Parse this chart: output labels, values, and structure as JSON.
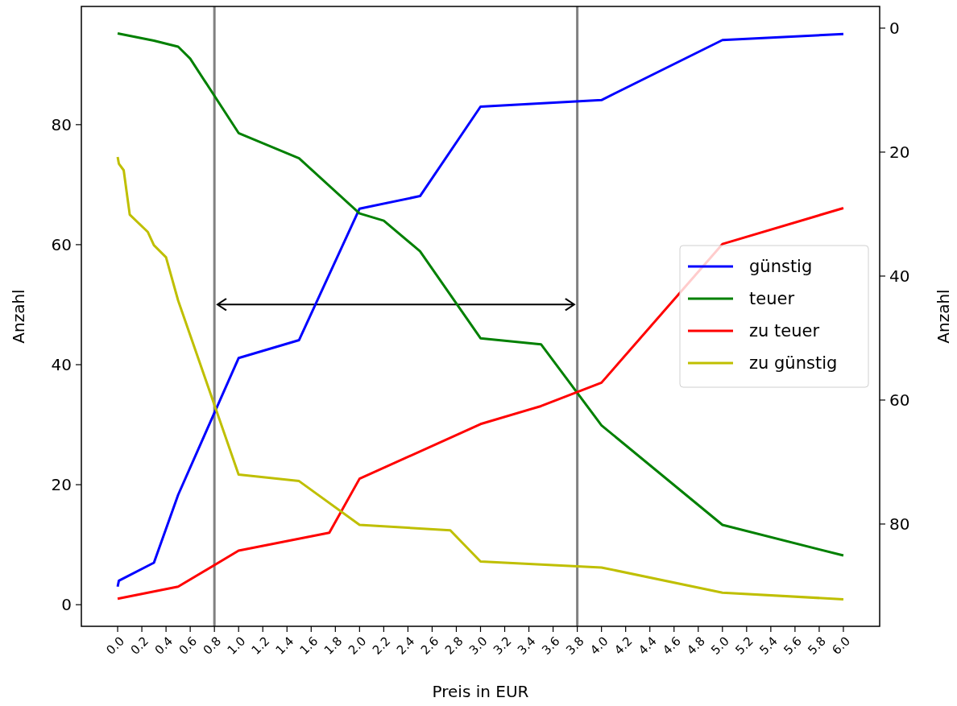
{
  "chart_data": {
    "type": "line",
    "xlabel": "Preis in EUR",
    "ylabel": "Anzahl",
    "y2label": "Anzahl",
    "xlim": [
      -0.3,
      6.3
    ],
    "ylim": [
      -3.6,
      99.7
    ],
    "y2lim": [
      96.5,
      -3.5
    ],
    "xticks": [
      {
        "value": 0,
        "label": "0.0"
      },
      0.2,
      0.4,
      0.6,
      0.8,
      {
        "value": 1,
        "label": "1.0"
      },
      1.2,
      1.4,
      1.6,
      1.8,
      {
        "value": 2,
        "label": "2.0"
      },
      2.2,
      2.4,
      2.6,
      2.8,
      {
        "value": 3,
        "label": "3.0"
      },
      3.2,
      3.4,
      3.6,
      3.8,
      {
        "value": 4,
        "label": "4.0"
      },
      4.2,
      4.4,
      4.6,
      4.8,
      {
        "value": 5,
        "label": "5.0"
      },
      5.2,
      5.4,
      5.6,
      5.8,
      {
        "value": 6,
        "label": "6.0"
      }
    ],
    "yticks": [
      0,
      20,
      40,
      60,
      80
    ],
    "y2ticks": [
      0,
      20,
      40,
      60,
      80
    ],
    "legend": "center right",
    "grid": false,
    "marker": "none",
    "line_style": "solid",
    "ref_lines": [
      {
        "axis": "x",
        "value": 0.8,
        "color": "#808080"
      },
      {
        "axis": "x",
        "value": 3.8,
        "color": "#808080"
      }
    ],
    "series": [
      {
        "name": "günstig",
        "color": "#0000ff",
        "x": [
          0,
          0.01,
          0.3,
          0.5,
          1.0,
          1.5,
          2.0,
          2.5,
          3.0,
          4.0,
          5.0,
          6.0
        ],
        "values": [
          3,
          4,
          7,
          18.3,
          41.1,
          44.1,
          66,
          68.1,
          83,
          84.1,
          94.1,
          95.1
        ]
      },
      {
        "name": "teuer",
        "color": "#008000",
        "x": [
          0,
          0.3,
          0.5,
          0.6,
          1.0,
          1.5,
          2.0,
          2.2,
          2.5,
          3.0,
          3.5,
          4.0,
          5.0,
          6.0
        ],
        "values": [
          95.2,
          94,
          93,
          91,
          78.6,
          74.4,
          65.2,
          64,
          58.9,
          44.4,
          43.4,
          29.9,
          13.3,
          8.2
        ]
      },
      {
        "name": "zu teuer",
        "color": "#ff0000",
        "x": [
          0,
          0.5,
          1.0,
          1.75,
          2.0,
          3.0,
          3.5,
          4.0,
          5.0,
          6.0
        ],
        "values": [
          1,
          3,
          9,
          12,
          21,
          30.1,
          33.1,
          37,
          60.1,
          66.1
        ]
      },
      {
        "name": "zu günstig",
        "color": "#bfbf00",
        "x": [
          0,
          0.01,
          0.05,
          0.1,
          0.25,
          0.3,
          0.4,
          0.5,
          1.0,
          1.5,
          2.0,
          2.75,
          3.0,
          4.0,
          5.0,
          6.0
        ],
        "values": [
          74.6,
          73.5,
          72.4,
          65,
          62.1,
          59.9,
          57.9,
          50.7,
          21.7,
          20.6,
          13.3,
          12.4,
          7.2,
          6.2,
          2,
          0.9
        ]
      }
    ]
  }
}
